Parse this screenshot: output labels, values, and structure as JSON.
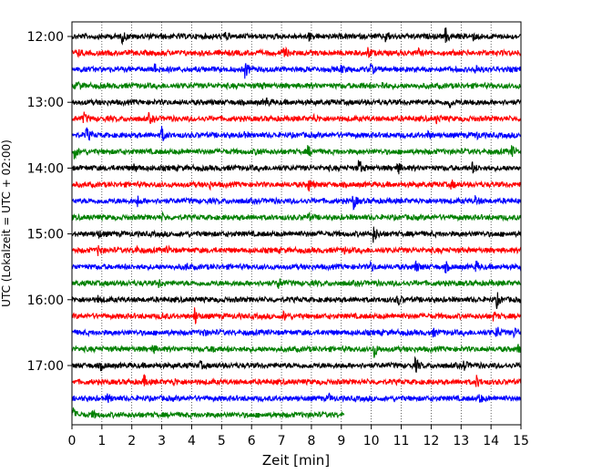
{
  "chart_data": {
    "type": "line",
    "title": "",
    "xlabel": "Zeit  [min]",
    "ylabel": "UTC (Lokalzeit = UTC + 02:00)",
    "xlim": [
      0,
      15
    ],
    "x_ticks": [
      0,
      1,
      2,
      3,
      4,
      5,
      6,
      7,
      8,
      9,
      10,
      11,
      12,
      13,
      14,
      15
    ],
    "x_tick_labels": [
      "0",
      "1",
      "2",
      "3",
      "4",
      "5",
      "6",
      "7",
      "8",
      "9",
      "10",
      "11",
      "12",
      "13",
      "14",
      "15"
    ],
    "y_ticks": [
      "12:00",
      "13:00",
      "14:00",
      "15:00",
      "16:00",
      "17:00"
    ],
    "grid": "vertical dotted at each minute",
    "trace_interval_minutes": 15,
    "color_cycle": [
      "#000000",
      "#ff0000",
      "#0000ff",
      "#008000"
    ],
    "series": [
      {
        "start": "12:00",
        "end_min": 15
      },
      {
        "start": "12:15",
        "end_min": 15
      },
      {
        "start": "12:30",
        "end_min": 15
      },
      {
        "start": "12:45",
        "end_min": 15
      },
      {
        "start": "13:00",
        "end_min": 15
      },
      {
        "start": "13:15",
        "end_min": 15
      },
      {
        "start": "13:30",
        "end_min": 15
      },
      {
        "start": "13:45",
        "end_min": 15
      },
      {
        "start": "14:00",
        "end_min": 15
      },
      {
        "start": "14:15",
        "end_min": 15
      },
      {
        "start": "14:30",
        "end_min": 15
      },
      {
        "start": "14:45",
        "end_min": 15
      },
      {
        "start": "15:00",
        "end_min": 15
      },
      {
        "start": "15:15",
        "end_min": 15
      },
      {
        "start": "15:30",
        "end_min": 15
      },
      {
        "start": "15:45",
        "end_min": 15
      },
      {
        "start": "16:00",
        "end_min": 15
      },
      {
        "start": "16:15",
        "end_min": 15
      },
      {
        "start": "16:30",
        "end_min": 15
      },
      {
        "start": "16:45",
        "end_min": 15
      },
      {
        "start": "17:00",
        "end_min": 15
      },
      {
        "start": "17:15",
        "end_min": 15
      },
      {
        "start": "17:30",
        "end_min": 15
      },
      {
        "start": "17:45",
        "end_min": 9.1
      }
    ],
    "events": [
      [
        [
          1.7,
          5
        ],
        [
          5.1,
          4
        ],
        [
          7.9,
          4
        ],
        [
          10.5,
          5
        ],
        [
          12.5,
          7
        ],
        [
          13.4,
          3
        ]
      ],
      [
        [
          0.2,
          3
        ],
        [
          7.1,
          5
        ],
        [
          9.9,
          5
        ],
        [
          11.6,
          3
        ]
      ],
      [
        [
          2.8,
          5
        ],
        [
          5.8,
          8
        ],
        [
          9.0,
          3
        ],
        [
          10.0,
          4
        ],
        [
          13.5,
          5
        ]
      ],
      [
        [
          0.2,
          4
        ],
        [
          6.3,
          3
        ],
        [
          9.6,
          3
        ],
        [
          10.4,
          3
        ]
      ],
      [
        [
          6.5,
          4
        ],
        [
          12.6,
          6
        ],
        [
          13.4,
          3
        ]
      ],
      [
        [
          0.4,
          5
        ],
        [
          2.6,
          4
        ],
        [
          8.1,
          3
        ],
        [
          12.2,
          4
        ]
      ],
      [
        [
          0.5,
          7
        ],
        [
          3.0,
          8
        ],
        [
          5.7,
          3
        ],
        [
          11.9,
          3
        ],
        [
          13.5,
          4
        ]
      ],
      [
        [
          0.1,
          6
        ],
        [
          6.2,
          3
        ],
        [
          7.9,
          5
        ],
        [
          14.7,
          5
        ]
      ],
      [
        [
          2.1,
          3
        ],
        [
          9.6,
          8
        ],
        [
          10.9,
          5
        ],
        [
          13.4,
          5
        ]
      ],
      [
        [
          4.6,
          3
        ],
        [
          7.9,
          7
        ],
        [
          12.7,
          3
        ]
      ],
      [
        [
          2.2,
          5
        ],
        [
          9.4,
          9
        ],
        [
          13.5,
          4
        ]
      ],
      [
        [
          3.0,
          3
        ],
        [
          7.9,
          3
        ]
      ],
      [
        [
          0.9,
          3
        ],
        [
          10.1,
          8
        ]
      ],
      [
        [
          0.9,
          5
        ],
        [
          2.1,
          4
        ],
        [
          3.2,
          3
        ],
        [
          9.1,
          3
        ]
      ],
      [
        [
          3.8,
          3
        ],
        [
          10.0,
          4
        ],
        [
          11.5,
          5
        ],
        [
          12.5,
          4
        ],
        [
          13.5,
          5
        ]
      ],
      [
        [
          2.9,
          4
        ],
        [
          6.9,
          5
        ]
      ],
      [
        [
          0.9,
          3
        ],
        [
          10.9,
          5
        ],
        [
          14.2,
          7
        ]
      ],
      [
        [
          3.0,
          3
        ],
        [
          4.1,
          9
        ],
        [
          7.1,
          4
        ],
        [
          14.1,
          3
        ]
      ],
      [
        [
          4.4,
          3
        ],
        [
          12.1,
          3
        ],
        [
          14.2,
          6
        ],
        [
          14.8,
          4
        ]
      ],
      [
        [
          2.7,
          4
        ],
        [
          4.7,
          3
        ],
        [
          10.1,
          8
        ],
        [
          14.9,
          4
        ]
      ],
      [
        [
          1.0,
          3
        ],
        [
          4.3,
          3
        ],
        [
          11.5,
          6
        ],
        [
          13.1,
          5
        ]
      ],
      [
        [
          2.4,
          6
        ],
        [
          3.4,
          3
        ],
        [
          13.5,
          7
        ]
      ],
      [
        [
          1.2,
          4
        ],
        [
          8.6,
          3
        ],
        [
          13.6,
          5
        ]
      ],
      [
        [
          0.05,
          6
        ],
        [
          0.7,
          3
        ]
      ]
    ]
  }
}
